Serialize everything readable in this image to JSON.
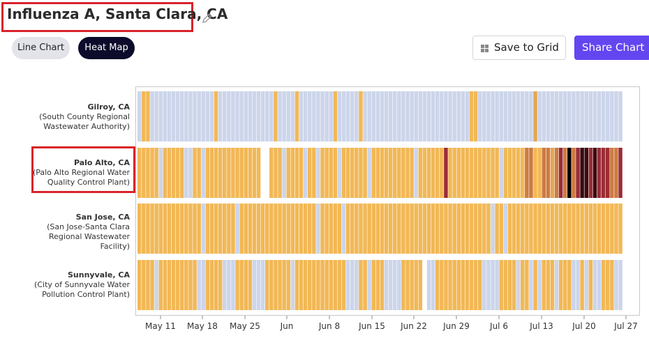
{
  "header": {
    "title": "Influenza A, Santa Clara, CA",
    "edit_icon": "pencil-icon"
  },
  "toolbar": {
    "line_chart_label": "Line Chart",
    "heat_map_label": "Heat Map",
    "save_label": "Save to Grid",
    "save_icon": "grid-icon",
    "share_label": "Share Chart",
    "accent_color": "#6446f1"
  },
  "chart_data": {
    "type": "heatmap",
    "title": "",
    "xlabel": "",
    "ylabel": "",
    "x_tick_labels": [
      "May 11",
      "May 18",
      "May 25",
      "Jun",
      "Jun 8",
      "Jun 15",
      "Jun 22",
      "Jun 29",
      "Jul 6",
      "Jul 13",
      "Jul 20",
      "Jul 27"
    ],
    "level_colors": {
      "0": "#ccd5ea",
      "1": "#f2b856",
      "2": "#e3a653",
      "3": "#cd7b43",
      "4": "#9a2d35",
      "5": "#3b0a11",
      "6": "#000000",
      "missing": "#ffffff"
    },
    "rows": [
      {
        "name": "Gilroy, CA",
        "facility": "(South County Regional Wastewater Authority)",
        "levels": [
          0,
          1,
          1,
          0,
          0,
          0,
          0,
          0,
          0,
          0,
          0,
          0,
          0,
          0,
          0,
          0,
          0,
          0,
          1,
          0,
          0,
          0,
          0,
          0,
          0,
          0,
          0,
          0,
          0,
          0,
          0,
          0,
          1,
          0,
          0,
          0,
          0,
          1,
          0,
          0,
          0,
          0,
          0,
          0,
          0,
          0,
          1,
          0,
          0,
          0,
          0,
          0,
          1,
          0,
          0,
          0,
          0,
          0,
          0,
          0,
          0,
          0,
          0,
          0,
          0,
          0,
          0,
          0,
          0,
          0,
          0,
          0,
          0,
          0,
          0,
          0,
          0,
          0,
          1,
          1,
          0,
          0,
          0,
          0,
          0,
          0,
          0,
          0,
          0,
          0,
          0,
          0,
          0,
          2,
          0,
          0,
          0,
          0,
          0,
          0,
          0,
          0,
          0,
          0,
          0,
          0,
          0,
          0,
          0,
          0,
          0,
          0,
          0,
          0
        ]
      },
      {
        "name": "Palo Alto, CA",
        "facility": "(Palo Alto Regional Water Quality Control Plant)",
        "levels": [
          1,
          1,
          1,
          1,
          1,
          0,
          1,
          1,
          1,
          1,
          1,
          0,
          0,
          1,
          1,
          0,
          1,
          1,
          1,
          1,
          1,
          1,
          1,
          1,
          1,
          1,
          1,
          1,
          1,
          "missing",
          "missing",
          1,
          1,
          1,
          0,
          1,
          1,
          1,
          1,
          0,
          1,
          1,
          0,
          1,
          1,
          1,
          1,
          0,
          1,
          1,
          1,
          1,
          1,
          1,
          0,
          1,
          1,
          1,
          1,
          1,
          1,
          1,
          1,
          1,
          1,
          0,
          1,
          1,
          1,
          1,
          1,
          1,
          4,
          1,
          1,
          1,
          1,
          1,
          1,
          1,
          1,
          1,
          1,
          1,
          1,
          0,
          1,
          1,
          1,
          1,
          1,
          3,
          3,
          1,
          1,
          3,
          3,
          2,
          3,
          4,
          3,
          6,
          3,
          4,
          5,
          5,
          4,
          5,
          4,
          4,
          4,
          3,
          3,
          4
        ]
      },
      {
        "name": "San Jose, CA",
        "facility": "(San Jose-Santa Clara Regional Wastewater Facility)",
        "levels": [
          1,
          1,
          1,
          1,
          1,
          1,
          1,
          1,
          1,
          1,
          1,
          1,
          1,
          1,
          1,
          0,
          1,
          1,
          1,
          1,
          1,
          1,
          1,
          0,
          1,
          1,
          1,
          1,
          1,
          1,
          1,
          1,
          1,
          1,
          1,
          1,
          1,
          1,
          1,
          1,
          1,
          1,
          0,
          1,
          1,
          1,
          1,
          1,
          0,
          1,
          1,
          1,
          1,
          1,
          1,
          1,
          1,
          1,
          1,
          1,
          1,
          1,
          1,
          1,
          1,
          1,
          1,
          1,
          1,
          1,
          1,
          1,
          1,
          1,
          1,
          1,
          1,
          1,
          1,
          1,
          1,
          1,
          1,
          0,
          1,
          1,
          0,
          1,
          1,
          1,
          1,
          1,
          1,
          1,
          1,
          1,
          1,
          1,
          1,
          1,
          1,
          1,
          1,
          1,
          1,
          1,
          1,
          1,
          1,
          1,
          1,
          1,
          1,
          1
        ]
      },
      {
        "name": "Sunnyvale, CA",
        "facility": "(City of Sunnyvale Water Pollution Control Plant)",
        "levels": [
          1,
          1,
          1,
          1,
          0,
          1,
          1,
          1,
          1,
          1,
          1,
          1,
          1,
          1,
          0,
          0,
          1,
          1,
          1,
          1,
          0,
          0,
          0,
          1,
          1,
          1,
          1,
          0,
          0,
          0,
          1,
          1,
          1,
          1,
          1,
          1,
          0,
          1,
          1,
          1,
          1,
          1,
          1,
          1,
          1,
          1,
          1,
          1,
          1,
          0,
          0,
          0,
          1,
          1,
          0,
          1,
          1,
          1,
          0,
          0,
          0,
          0,
          1,
          1,
          1,
          1,
          1,
          "missing",
          0,
          0,
          1,
          1,
          1,
          1,
          1,
          1,
          1,
          1,
          1,
          1,
          1,
          0,
          0,
          0,
          0,
          1,
          1,
          1,
          1,
          0,
          1,
          1,
          0,
          1,
          0,
          1,
          1,
          1,
          0,
          1,
          1,
          1,
          0,
          0,
          1,
          0,
          1,
          0,
          0,
          1,
          1,
          1,
          0,
          0
        ]
      }
    ]
  }
}
